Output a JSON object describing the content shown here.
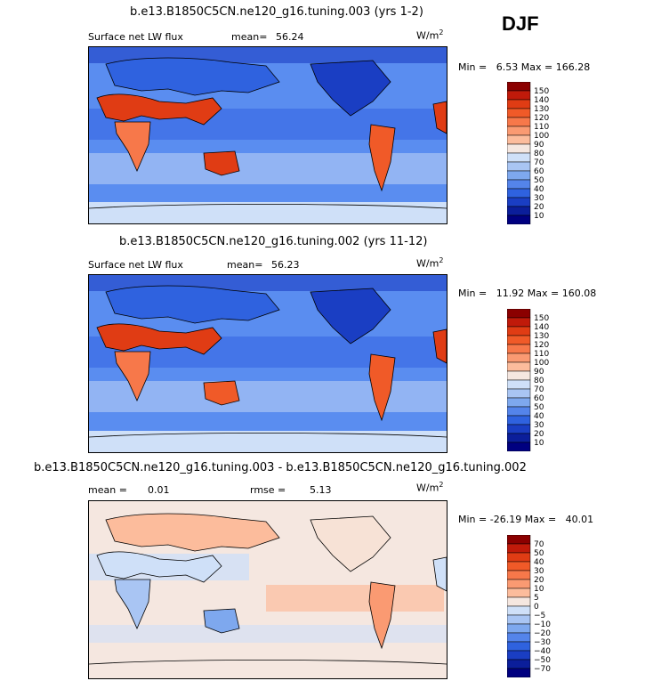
{
  "season": "DJF",
  "units_base": "W/m",
  "units_exp": "2",
  "chart_data": [
    {
      "type": "heatmap",
      "title": "b.e13.B1850C5CN.ne120_g16.tuning.003 (yrs 1-2)",
      "field": "Surface net LW flux",
      "stat1_label": "mean=",
      "stat1_value": "56.24",
      "min_label": "Min =",
      "min_value": "6.53",
      "max_label": "Max =",
      "max_value": "166.28",
      "colorbar_levels": [
        "150",
        "140",
        "130",
        "120",
        "110",
        "100",
        "90",
        "80",
        "70",
        "60",
        "50",
        "40",
        "30",
        "20",
        "10"
      ],
      "colorbar_colors": [
        "#8b0000",
        "#c01a0a",
        "#e03c14",
        "#f05a28",
        "#f7784a",
        "#fa9a72",
        "#fcbc9c",
        "#f5e7e0",
        "#cfe0f8",
        "#a9c5f3",
        "#7ea8ee",
        "#5484ea",
        "#2f62df",
        "#1a3ec3",
        "#0b1e9a",
        "#000080"
      ]
    },
    {
      "type": "heatmap",
      "title": "b.e13.B1850C5CN.ne120_g16.tuning.002 (yrs 11-12)",
      "field": "Surface net LW flux",
      "stat1_label": "mean=",
      "stat1_value": "56.23",
      "min_label": "Min =",
      "min_value": "11.92",
      "max_label": "Max =",
      "max_value": "160.08",
      "colorbar_levels": [
        "150",
        "140",
        "130",
        "120",
        "110",
        "100",
        "90",
        "80",
        "70",
        "60",
        "50",
        "40",
        "30",
        "20",
        "10"
      ],
      "colorbar_colors": [
        "#8b0000",
        "#c01a0a",
        "#e03c14",
        "#f05a28",
        "#f7784a",
        "#fa9a72",
        "#fcbc9c",
        "#f5e7e0",
        "#cfe0f8",
        "#a9c5f3",
        "#7ea8ee",
        "#5484ea",
        "#2f62df",
        "#1a3ec3",
        "#0b1e9a",
        "#000080"
      ]
    },
    {
      "type": "heatmap",
      "title": "b.e13.B1850C5CN.ne120_g16.tuning.003 - b.e13.B1850C5CN.ne120_g16.tuning.002",
      "stat1_label": "mean =",
      "stat1_value": "0.01",
      "stat2_label": "rmse =",
      "stat2_value": "5.13",
      "min_label": "Min =",
      "min_value": "-26.19",
      "max_label": "Max =",
      "max_value": "40.01",
      "colorbar_levels": [
        "70",
        "50",
        "40",
        "30",
        "20",
        "10",
        "5",
        "0",
        "−5",
        "−10",
        "−20",
        "−30",
        "−40",
        "−50",
        "−70"
      ],
      "colorbar_colors": [
        "#8b0000",
        "#c01a0a",
        "#e03c14",
        "#f05a28",
        "#f7784a",
        "#fa9a72",
        "#fcbc9c",
        "#f5e7e0",
        "#cfe0f8",
        "#a9c5f3",
        "#7ea8ee",
        "#5484ea",
        "#2f62df",
        "#1a3ec3",
        "#0b1e9a",
        "#000080"
      ]
    }
  ]
}
